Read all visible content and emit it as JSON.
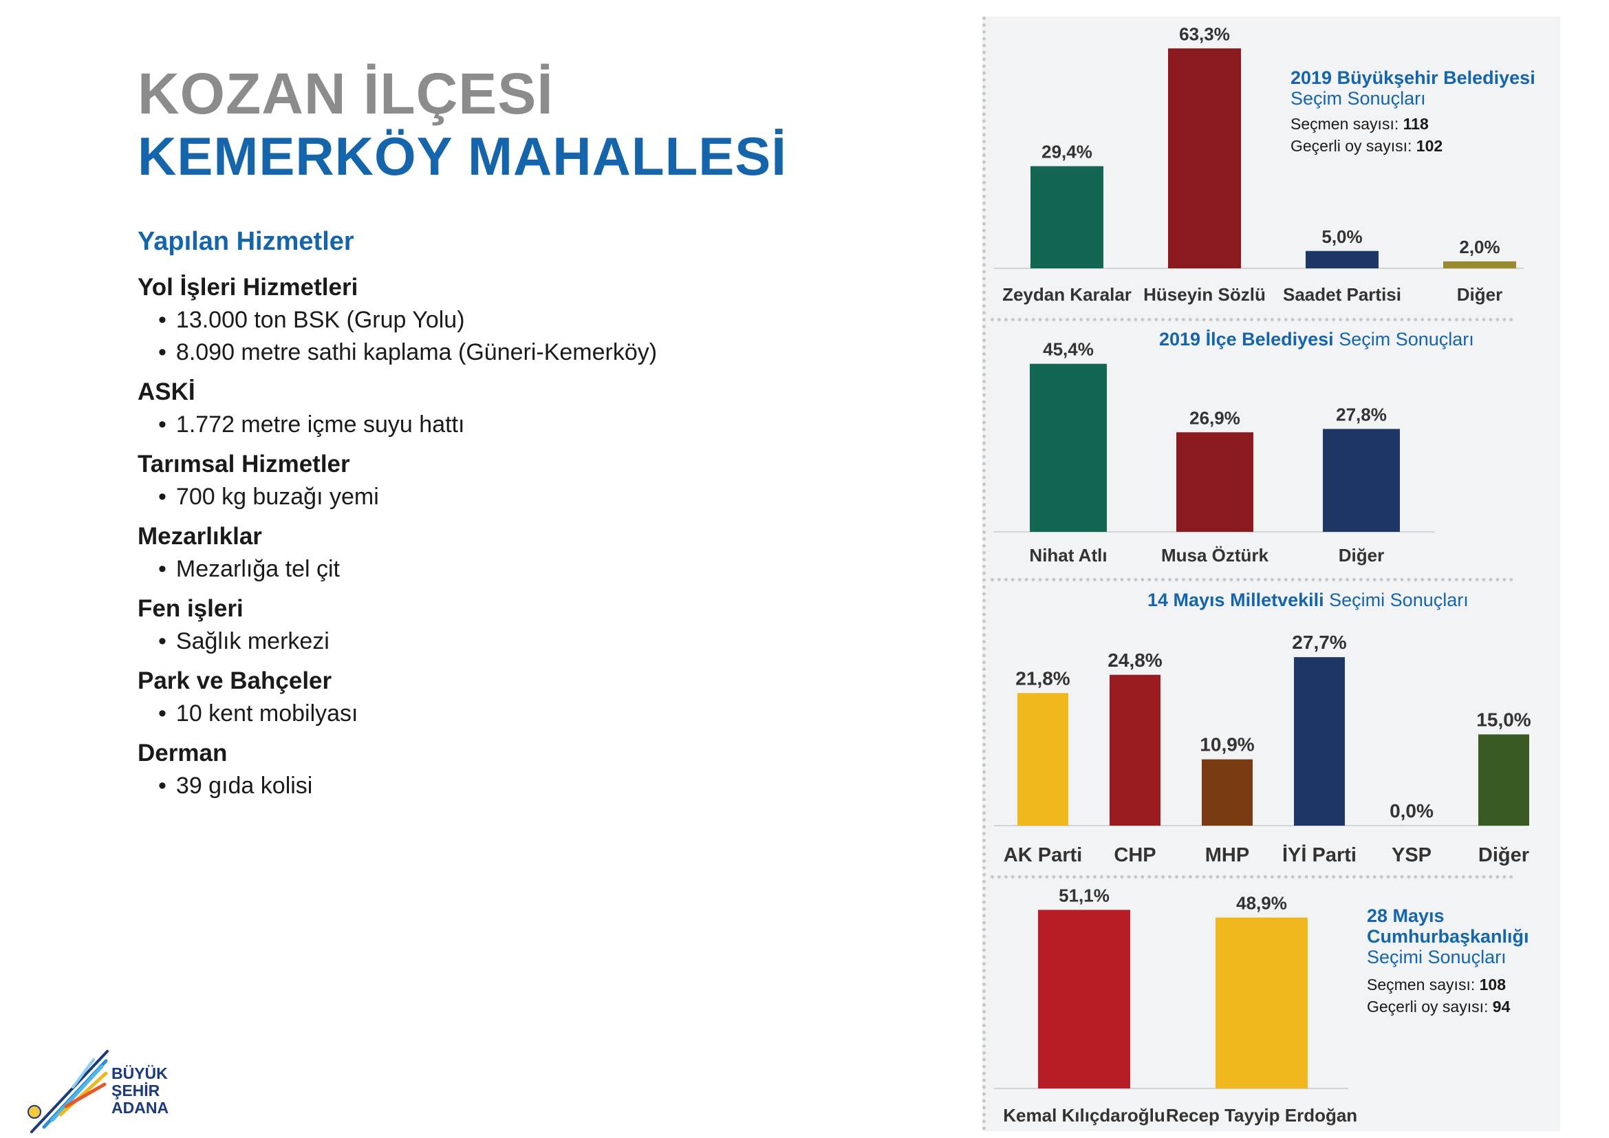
{
  "header": {
    "line1": "KOZAN İLÇESİ",
    "line2": "KEMERKÖY MAHALLESİ"
  },
  "services": {
    "heading": "Yapılan Hizmetler",
    "groups": [
      {
        "title": "Yol İşleri Hizmetleri",
        "items": [
          "13.000 ton BSK (Grup Yolu)",
          "8.090 metre sathi kaplama (Güneri-Kemerköy)"
        ]
      },
      {
        "title": "ASKİ",
        "items": [
          "1.772 metre içme suyu hattı"
        ]
      },
      {
        "title": "Tarımsal Hizmetler",
        "items": [
          "700 kg buzağı yemi"
        ]
      },
      {
        "title": "Mezarlıklar",
        "items": [
          "Mezarlığa tel çit"
        ]
      },
      {
        "title": "Fen işleri",
        "items": [
          "Sağlık merkezi"
        ]
      },
      {
        "title": "Park ve Bahçeler",
        "items": [
          "10 kent mobilyası"
        ]
      },
      {
        "title": "Derman",
        "items": [
          "39 gıda kolisi"
        ]
      }
    ]
  },
  "chart_data": [
    {
      "type": "bar",
      "title_bold": "2019 Büyükşehir Belediyesi",
      "title_light": "Seçim Sonuçları",
      "voters_label": "Seçmen sayısı:",
      "voters_value": "118",
      "valid_label": "Geçerli oy sayısı:",
      "valid_value": "102",
      "categories": [
        "Zeydan Karalar",
        "Hüseyin Sözlü",
        "Saadet Partisi",
        "Diğer"
      ],
      "values": [
        29.4,
        63.3,
        5.0,
        2.0
      ],
      "labels": [
        "29,4%",
        "63,3%",
        "5,0%",
        "2,0%"
      ],
      "colors": [
        "#136652",
        "#8b1a1e",
        "#1e3764",
        "#9a8a2e"
      ]
    },
    {
      "type": "bar",
      "title_bold": "2019 İlçe Belediyesi",
      "title_light": "Seçim Sonuçları",
      "categories": [
        "Nihat Atlı",
        "Musa Öztürk",
        "Diğer"
      ],
      "values": [
        45.4,
        26.9,
        27.8
      ],
      "labels": [
        "45,4%",
        "26,9%",
        "27,8%"
      ],
      "colors": [
        "#136652",
        "#8b1a1e",
        "#1e3764"
      ]
    },
    {
      "type": "bar",
      "title_bold": "14 Mayıs Milletvekili",
      "title_light": "Seçimi Sonuçları",
      "categories": [
        "AK Parti",
        "CHP",
        "MHP",
        "İYİ Parti",
        "YSP",
        "Diğer"
      ],
      "values": [
        21.8,
        24.8,
        10.9,
        27.7,
        0.0,
        15.0
      ],
      "labels": [
        "21,8%",
        "24,8%",
        "10,9%",
        "27,7%",
        "0,0%",
        "15,0%"
      ],
      "colors": [
        "#f0b81c",
        "#9a1b20",
        "#7a3a12",
        "#1e3764",
        "#7b2e7a",
        "#3a5a24"
      ]
    },
    {
      "type": "bar",
      "title_bold": "28 Mayıs Cumhurbaşkanlığı",
      "title_light": "Seçimi Sonuçları",
      "voters_label": "Seçmen sayısı:",
      "voters_value": "108",
      "valid_label": "Geçerli oy sayısı:",
      "valid_value": "94",
      "categories": [
        "Kemal Kılıçdaroğlu",
        "Recep Tayyip Erdoğan"
      ],
      "values": [
        51.1,
        48.9
      ],
      "labels": [
        "51,1%",
        "48,9%"
      ],
      "colors": [
        "#b81c24",
        "#f0b81c"
      ]
    }
  ],
  "logo": {
    "line1": "BÜYÜK",
    "line2": "ŞEHİR",
    "line3": "ADANA"
  }
}
